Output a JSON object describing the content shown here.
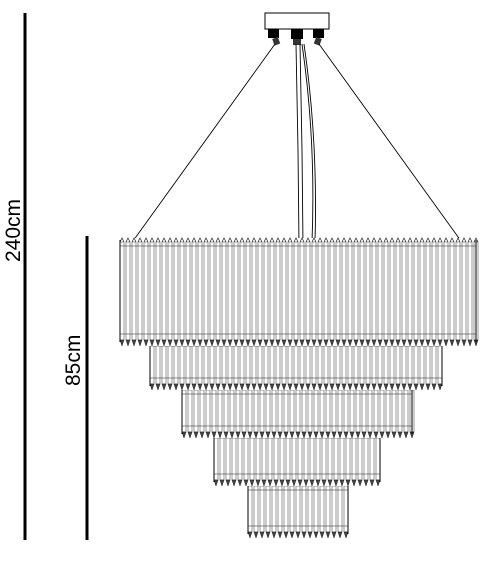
{
  "dimensions": {
    "total_height_label": "240cm",
    "body_height_label": "85cm"
  },
  "colors": {
    "line": "#000000",
    "crystal_stroke": "#555555",
    "background": "#ffffff"
  },
  "product": {
    "tier_count": 5,
    "suspension_wire_count": 2,
    "power_cord_count": 1
  }
}
